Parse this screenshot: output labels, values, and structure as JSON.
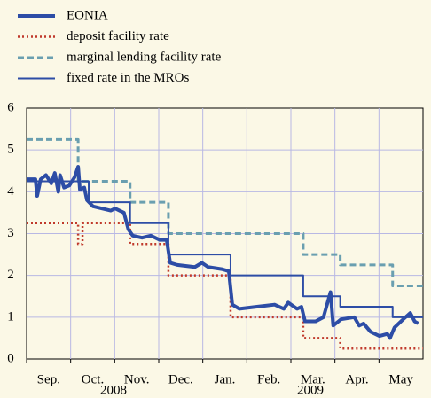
{
  "chart_data": {
    "type": "line",
    "categories": [
      "Sep.",
      "Oct.",
      "Nov.",
      "Dec.",
      "Jan.",
      "Feb.",
      "Mar.",
      "Apr.",
      "May"
    ],
    "year_labels": [
      "2008",
      "2009"
    ],
    "xlim": [
      0,
      9
    ],
    "ylim": [
      0,
      6
    ],
    "yticks": [
      0,
      1,
      2,
      3,
      4,
      5,
      6
    ],
    "grid": true,
    "series": [
      {
        "name": "EONIA",
        "color": "#2d4da6",
        "style": "thick",
        "x": [
          0,
          0.2,
          0.24,
          0.32,
          0.44,
          0.56,
          0.64,
          0.72,
          0.76,
          0.85,
          0.97,
          1.09,
          1.17,
          1.21,
          1.31,
          1.37,
          1.51,
          1.71,
          1.91,
          2.01,
          2.21,
          2.31,
          2.41,
          2.62,
          2.82,
          3.02,
          3.18,
          3.26,
          3.42,
          3.82,
          3.98,
          4.12,
          4.43,
          4.59,
          4.67,
          4.83,
          5.23,
          5.63,
          5.84,
          5.94,
          6.14,
          6.24,
          6.32,
          6.56,
          6.74,
          6.9,
          6.96,
          7.14,
          7.44,
          7.55,
          7.65,
          7.81,
          8.01,
          8.19,
          8.25,
          8.35,
          8.55,
          8.71,
          8.81,
          8.89
        ],
        "values": [
          4.3,
          4.3,
          3.9,
          4.3,
          4.4,
          4.2,
          4.45,
          4.0,
          4.4,
          4.1,
          4.15,
          4.35,
          4.6,
          4.05,
          4.1,
          3.8,
          3.65,
          3.6,
          3.55,
          3.6,
          3.5,
          3.1,
          2.95,
          2.9,
          2.95,
          2.85,
          2.85,
          2.3,
          2.25,
          2.2,
          2.3,
          2.2,
          2.15,
          2.1,
          1.3,
          1.2,
          1.25,
          1.3,
          1.2,
          1.35,
          1.2,
          1.25,
          0.9,
          0.9,
          1.0,
          1.6,
          0.8,
          0.95,
          1.0,
          0.8,
          0.85,
          0.65,
          0.55,
          0.6,
          0.5,
          0.75,
          0.95,
          1.1,
          0.9,
          0.85
        ]
      },
      {
        "name": "deposit facility rate",
        "color": "#c0392b",
        "style": "dotted",
        "x": [
          0,
          1.17,
          1.17,
          1.27,
          1.27,
          2.35,
          2.35,
          3.22,
          3.22,
          4.63,
          4.63,
          6.28,
          6.28,
          7.12,
          7.12,
          9
        ],
        "values": [
          3.25,
          3.25,
          2.75,
          2.75,
          3.25,
          3.25,
          2.75,
          2.75,
          2.0,
          2.0,
          1.0,
          1.0,
          0.5,
          0.5,
          0.25,
          0.25
        ]
      },
      {
        "name": "marginal lending facility rate",
        "color": "#6a9fb0",
        "style": "dashed",
        "x": [
          0,
          1.17,
          1.17,
          2.35,
          2.35,
          3.22,
          3.22,
          6.28,
          6.28,
          7.12,
          7.12,
          8.31,
          8.31,
          9
        ],
        "values": [
          5.25,
          5.25,
          4.25,
          4.25,
          3.75,
          3.75,
          3.0,
          3.0,
          2.5,
          2.5,
          2.25,
          2.25,
          1.75,
          1.75
        ]
      },
      {
        "name": "fixed rate in the MROs",
        "color": "#2d4da6",
        "style": "thin",
        "x": [
          0,
          1.41,
          1.41,
          2.35,
          2.35,
          3.22,
          3.22,
          4.63,
          4.63,
          6.28,
          6.28,
          7.12,
          7.12,
          8.31,
          8.31,
          9
        ],
        "values": [
          4.25,
          4.25,
          3.75,
          3.75,
          3.25,
          3.25,
          2.5,
          2.5,
          2.0,
          2.0,
          1.5,
          1.5,
          1.25,
          1.25,
          1.0,
          1.0
        ]
      }
    ]
  }
}
